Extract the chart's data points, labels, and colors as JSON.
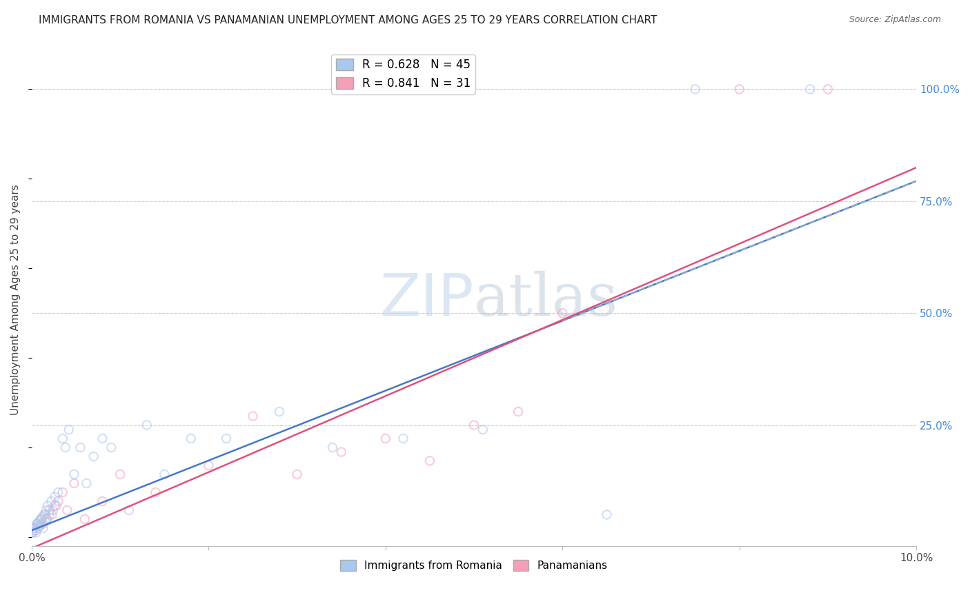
{
  "title": "IMMIGRANTS FROM ROMANIA VS PANAMANIAN UNEMPLOYMENT AMONG AGES 25 TO 29 YEARS CORRELATION CHART",
  "source": "Source: ZipAtlas.com",
  "ylabel": "Unemployment Among Ages 25 to 29 years",
  "xlim": [
    0.0,
    10.0
  ],
  "ylim": [
    -2.0,
    108.0
  ],
  "yticklabels_right": [
    "25.0%",
    "50.0%",
    "75.0%",
    "100.0%"
  ],
  "ytick_positions_right": [
    25.0,
    50.0,
    75.0,
    100.0
  ],
  "grid_color": "#cccccc",
  "background_color": "#ffffff",
  "series": [
    {
      "name": "Immigrants from Romania",
      "color": "#a8c8f0",
      "R": 0.628,
      "N": 45,
      "x": [
        0.01,
        0.02,
        0.03,
        0.04,
        0.05,
        0.06,
        0.07,
        0.08,
        0.09,
        0.1,
        0.11,
        0.12,
        0.13,
        0.14,
        0.15,
        0.16,
        0.17,
        0.18,
        0.2,
        0.22,
        0.24,
        0.26,
        0.28,
        0.3,
        0.35,
        0.38,
        0.42,
        0.48,
        0.55,
        0.62,
        0.7,
        0.8,
        0.9,
        1.1,
        1.3,
        1.5,
        1.8,
        2.2,
        2.8,
        3.4,
        4.2,
        5.1,
        6.5,
        7.5,
        8.8
      ],
      "y": [
        1.0,
        1.5,
        2.0,
        2.5,
        1.0,
        3.0,
        2.0,
        3.5,
        2.5,
        4.0,
        3.0,
        4.5,
        2.0,
        5.0,
        3.5,
        6.0,
        4.0,
        7.0,
        5.0,
        8.0,
        6.0,
        9.0,
        7.0,
        10.0,
        22.0,
        20.0,
        24.0,
        14.0,
        20.0,
        12.0,
        18.0,
        22.0,
        20.0,
        6.0,
        25.0,
        14.0,
        22.0,
        22.0,
        28.0,
        20.0,
        22.0,
        24.0,
        5.0,
        100.0,
        100.0
      ],
      "trend_color": "#4477cc",
      "trend_slope": 7.8,
      "trend_intercept": 1.5,
      "dash_start": 6.0
    },
    {
      "name": "Panamanians",
      "color": "#f5a0b8",
      "R": 0.841,
      "N": 31,
      "x": [
        0.01,
        0.03,
        0.05,
        0.07,
        0.09,
        0.11,
        0.13,
        0.15,
        0.17,
        0.2,
        0.23,
        0.26,
        0.3,
        0.35,
        0.4,
        0.48,
        0.6,
        0.8,
        1.0,
        1.4,
        2.0,
        2.5,
        3.0,
        3.5,
        4.0,
        4.5,
        5.0,
        5.5,
        6.0,
        8.0,
        9.0
      ],
      "y": [
        1.0,
        2.0,
        1.5,
        3.0,
        2.5,
        4.0,
        3.0,
        5.0,
        4.0,
        6.0,
        5.0,
        7.0,
        8.0,
        10.0,
        6.0,
        12.0,
        4.0,
        8.0,
        14.0,
        10.0,
        16.0,
        27.0,
        14.0,
        19.0,
        22.0,
        17.0,
        25.0,
        28.0,
        50.0,
        100.0,
        100.0
      ],
      "trend_color": "#e0507a",
      "trend_slope": 8.5,
      "trend_intercept": -2.5
    }
  ],
  "title_fontsize": 11,
  "axis_label_fontsize": 11,
  "tick_fontsize": 11,
  "marker_size": 80,
  "marker_alpha": 0.55,
  "line_width": 1.8
}
